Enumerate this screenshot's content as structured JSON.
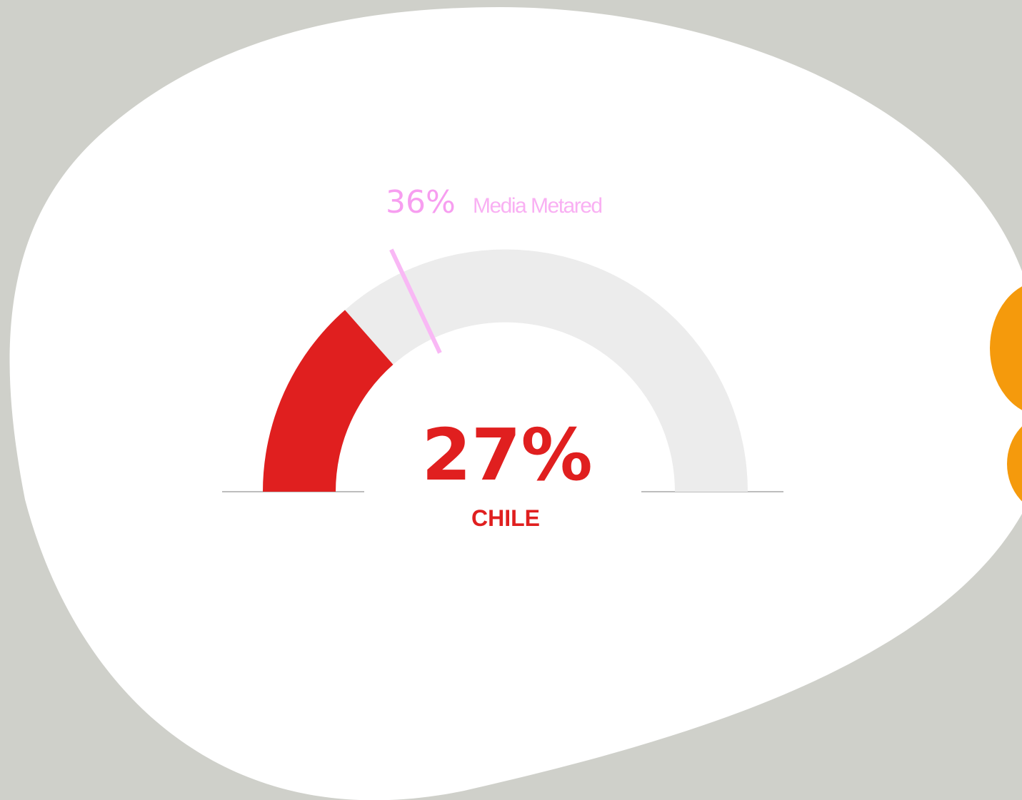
{
  "chart_data": {
    "type": "gauge",
    "categories": [
      "CHILE"
    ],
    "values": [
      27
    ],
    "value_labels": [
      "27%"
    ],
    "ylim": [
      0,
      100
    ],
    "color": "#e01f1f",
    "track_color": "#ececec",
    "reference": {
      "name": "Media Metared",
      "value": 36,
      "value_label": "36%",
      "color": "#f9b8f5"
    }
  }
}
